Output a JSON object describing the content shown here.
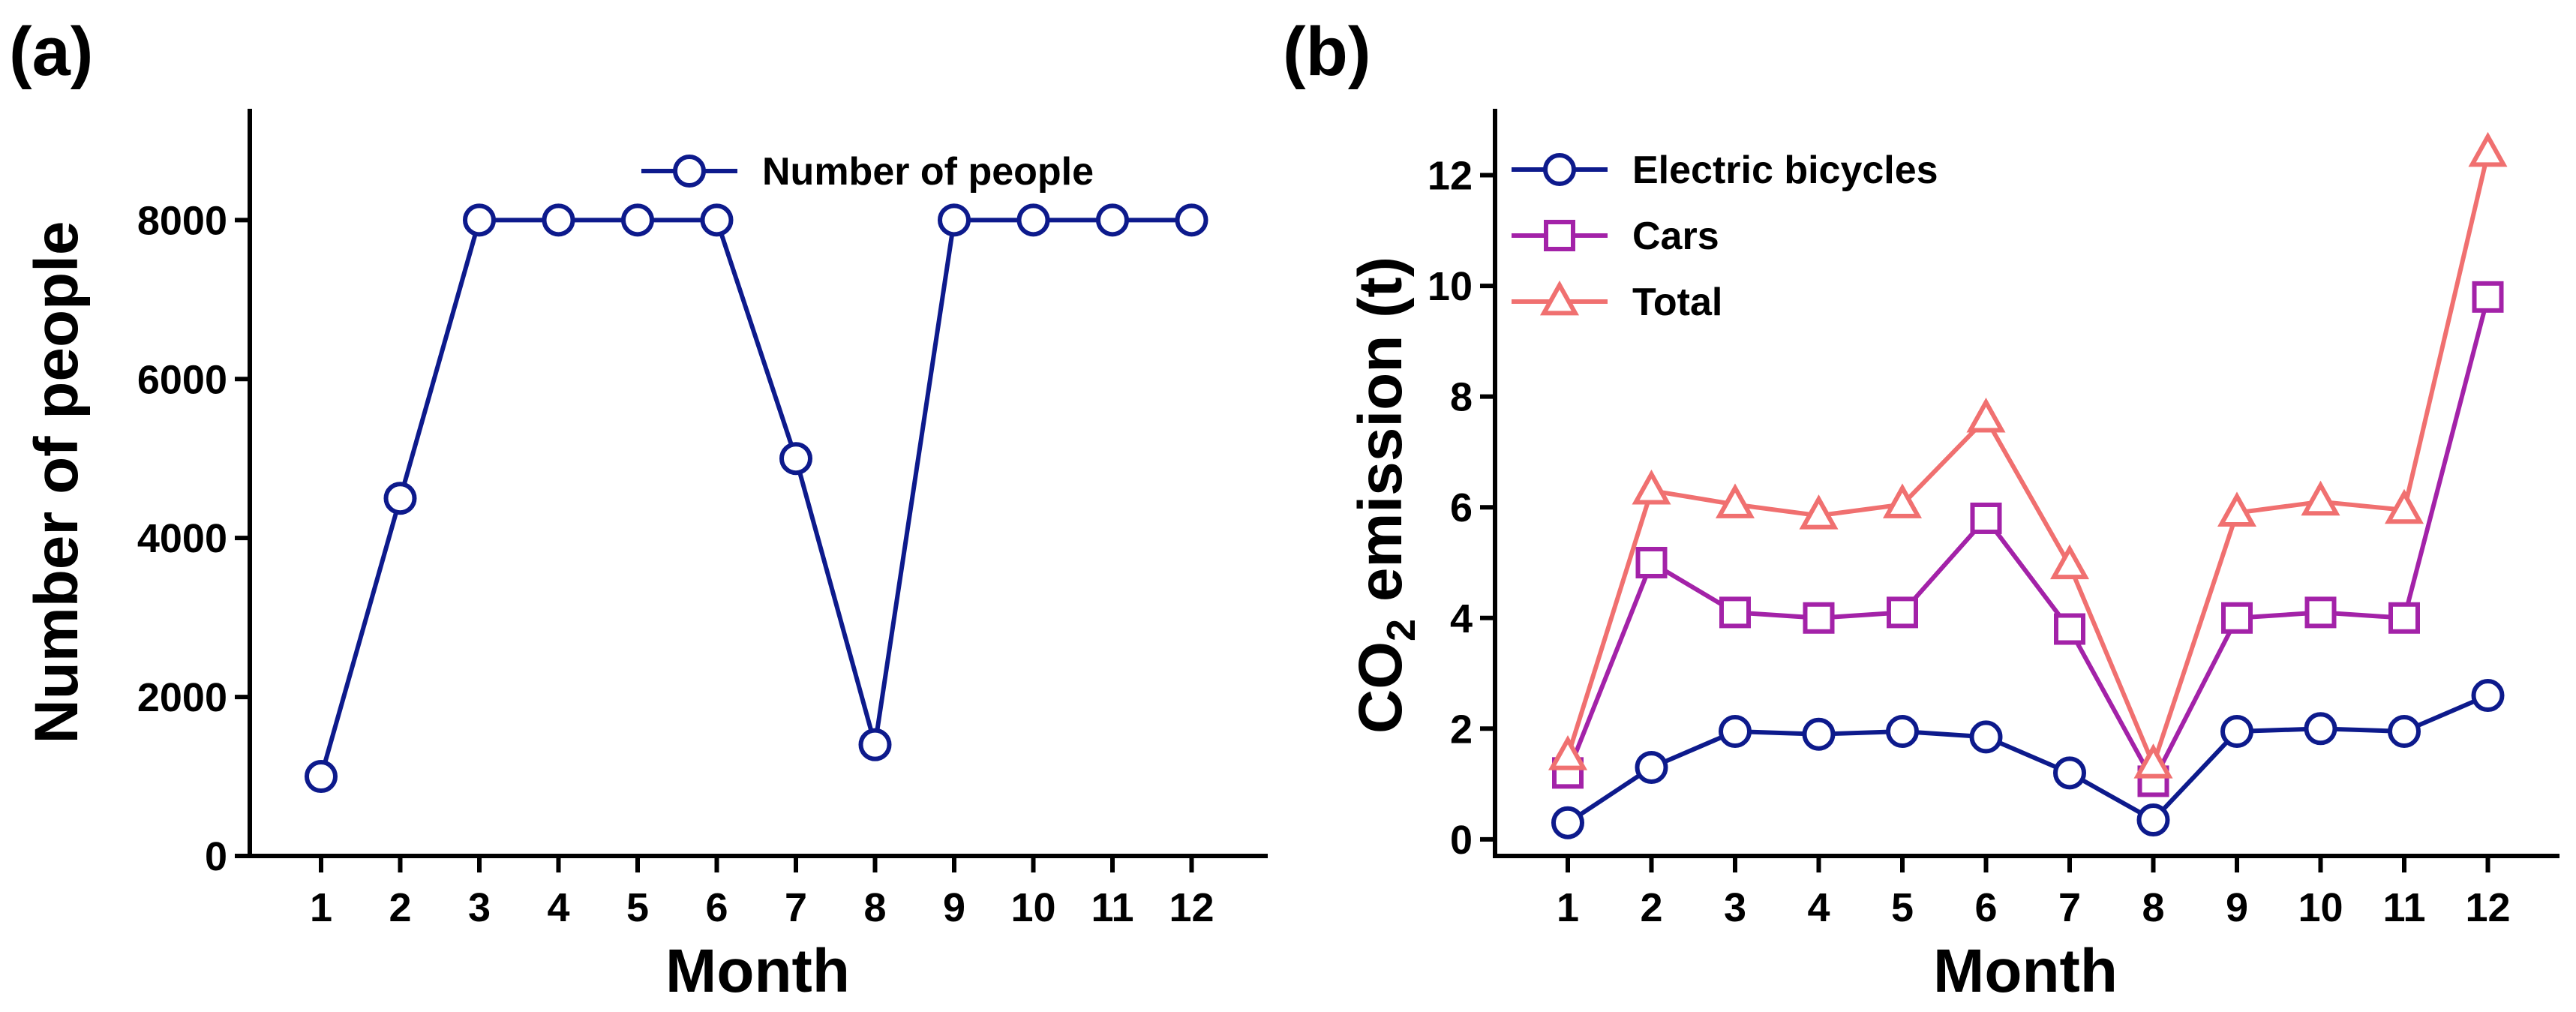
{
  "chart_data": [
    {
      "panel_label": "(a)",
      "type": "line",
      "x": [
        1,
        2,
        3,
        4,
        5,
        6,
        7,
        8,
        9,
        10,
        11,
        12
      ],
      "xtick_labels": [
        "1",
        "2",
        "3",
        "4",
        "5",
        "6",
        "7",
        "8",
        "9",
        "10",
        "11",
        "12"
      ],
      "series": [
        {
          "name": "Number of people",
          "marker": "circle",
          "color": "#0d1a8c",
          "values": [
            1000,
            4500,
            8000,
            8000,
            8000,
            8000,
            5000,
            1400,
            8000,
            8000,
            8000,
            8000
          ]
        }
      ],
      "xlabel": "Month",
      "ylabel": "Number of people",
      "ylim": [
        0,
        9400
      ],
      "yticks": [
        0,
        2000,
        4000,
        6000,
        8000
      ],
      "ytick_labels": [
        "0",
        "2000",
        "4000",
        "6000",
        "8000"
      ],
      "grid": false,
      "legend": "top-right"
    },
    {
      "panel_label": "(b)",
      "type": "line",
      "x": [
        1,
        2,
        3,
        4,
        5,
        6,
        7,
        8,
        9,
        10,
        11,
        12
      ],
      "xtick_labels": [
        "1",
        "2",
        "3",
        "4",
        "5",
        "6",
        "7",
        "8",
        "9",
        "10",
        "11",
        "12"
      ],
      "series": [
        {
          "name": "Electric bicycles",
          "marker": "circle",
          "color": "#0d1a8c",
          "values": [
            0.3,
            1.3,
            1.95,
            1.9,
            1.95,
            1.85,
            1.2,
            0.35,
            1.95,
            2.0,
            1.95,
            2.6
          ]
        },
        {
          "name": "Cars",
          "marker": "square",
          "color": "#a322a8",
          "values": [
            1.2,
            5.0,
            4.1,
            4.0,
            4.1,
            5.8,
            3.8,
            1.05,
            4.0,
            4.1,
            4.0,
            9.8
          ]
        },
        {
          "name": "Total",
          "marker": "triangle",
          "color": "#f07070",
          "values": [
            1.5,
            6.3,
            6.05,
            5.85,
            6.05,
            7.6,
            4.95,
            1.35,
            5.9,
            6.1,
            5.95,
            12.4
          ]
        }
      ],
      "xlabel": "Month",
      "ylabel_main": "CO",
      "ylabel_sub": "2",
      "ylabel_tail": " emission (t)",
      "ylim": [
        -0.3,
        13.2
      ],
      "yticks": [
        0,
        2,
        4,
        6,
        8,
        10,
        12
      ],
      "ytick_labels": [
        "0",
        "2",
        "4",
        "6",
        "8",
        "10",
        "12"
      ],
      "grid": false,
      "legend": "top-left"
    }
  ]
}
